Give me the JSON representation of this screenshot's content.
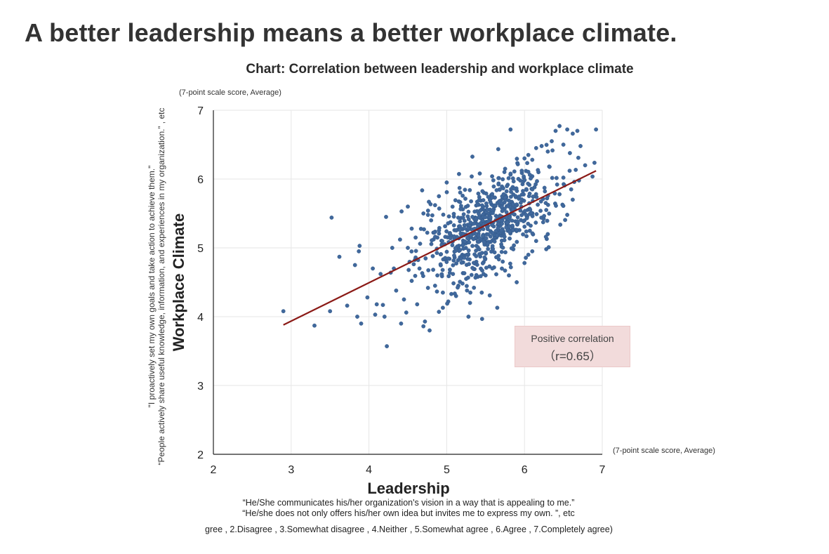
{
  "headline": "A better leadership means a better workplace climate.",
  "chart_data": {
    "type": "scatter",
    "title": "Chart: Correlation between leadership and workplace climate",
    "unit_note_y": "(7-point scale score, Average)",
    "unit_note_x": "(7-point scale score, Average)",
    "xlabel": "Leadership",
    "ylabel": "Workplace Climate",
    "xlim": [
      2,
      7
    ],
    "ylim": [
      2,
      7
    ],
    "xticks": [
      "2",
      "3",
      "4",
      "5",
      "6",
      "7"
    ],
    "yticks": [
      "2",
      "3",
      "4",
      "5",
      "6",
      "7"
    ],
    "grid": true,
    "x_items": [
      "“He/She communicates his/her organization's vision in a way that is appealing to me.”",
      "“He/she does not only offers his/her own idea but invites me to express my own. ”, etc"
    ],
    "y_items": [
      "\"I proactively set my own goals and take action to achieve them.\"",
      "“People actively share useful knowledge, information, and experiences in my organization.” , etc"
    ],
    "scale_note": "gree , 2.Disagree , 3.Somewhat disagree , 4.Neither , 5.Somewhat agree , 6.Agree , 7.Completely agree)",
    "annotation": {
      "line1": "Positive correlation",
      "line2": "（r=0.65）"
    },
    "trendline": {
      "x": [
        2.9,
        6.92
      ],
      "y": [
        3.88,
        6.12
      ]
    },
    "points": [
      [
        2.9,
        4.08
      ],
      [
        3.3,
        3.87
      ],
      [
        3.5,
        4.08
      ],
      [
        3.52,
        5.44
      ],
      [
        3.62,
        4.87
      ],
      [
        3.72,
        4.16
      ],
      [
        3.82,
        4.75
      ],
      [
        3.85,
        4.0
      ],
      [
        3.87,
        4.95
      ],
      [
        3.88,
        5.03
      ],
      [
        3.98,
        4.28
      ],
      [
        4.05,
        4.7
      ],
      [
        4.08,
        4.03
      ],
      [
        4.1,
        4.18
      ],
      [
        4.15,
        4.62
      ],
      [
        4.18,
        4.17
      ],
      [
        4.2,
        4.0
      ],
      [
        4.22,
        5.45
      ],
      [
        4.23,
        3.57
      ],
      [
        4.28,
        4.64
      ],
      [
        4.3,
        5.0
      ],
      [
        4.35,
        4.38
      ],
      [
        4.42,
        5.53
      ],
      [
        4.45,
        4.25
      ],
      [
        4.48,
        4.06
      ],
      [
        4.55,
        4.52
      ],
      [
        4.62,
        4.18
      ],
      [
        4.7,
        3.86
      ],
      [
        4.72,
        3.93
      ],
      [
        4.78,
        3.8
      ],
      [
        4.82,
        4.88
      ],
      [
        4.85,
        4.45
      ],
      [
        4.88,
        4.6
      ],
      [
        4.9,
        4.07
      ],
      [
        4.95,
        4.13
      ],
      [
        5.02,
        4.22
      ],
      [
        5.06,
        4.33
      ],
      [
        5.08,
        4.62
      ],
      [
        5.12,
        4.3
      ],
      [
        5.2,
        4.9
      ],
      [
        5.25,
        4.55
      ],
      [
        5.28,
        4.0
      ],
      [
        5.35,
        4.42
      ],
      [
        5.4,
        4.58
      ],
      [
        5.5,
        4.6
      ],
      [
        5.55,
        4.73
      ],
      [
        5.65,
        4.13
      ],
      [
        5.72,
        4.8
      ],
      [
        5.75,
        4.67
      ],
      [
        5.8,
        4.6
      ],
      [
        5.82,
        6.72
      ],
      [
        5.9,
        4.5
      ],
      [
        6.0,
        6.3
      ],
      [
        6.05,
        6.35
      ],
      [
        6.1,
        6.28
      ],
      [
        6.15,
        6.45
      ],
      [
        6.22,
        6.48
      ],
      [
        6.3,
        6.4
      ],
      [
        6.35,
        6.55
      ],
      [
        6.4,
        6.7
      ],
      [
        6.45,
        6.77
      ],
      [
        6.5,
        6.5
      ],
      [
        6.55,
        6.72
      ],
      [
        6.62,
        6.66
      ],
      [
        6.68,
        6.7
      ],
      [
        6.72,
        6.48
      ],
      [
        6.78,
        6.2
      ],
      [
        6.92,
        6.72
      ],
      [
        6.62,
        5.7
      ],
      [
        6.55,
        5.48
      ],
      [
        6.45,
        5.78
      ],
      [
        6.6,
        5.85
      ],
      [
        6.7,
        5.98
      ],
      [
        6.5,
        6.02
      ],
      [
        6.58,
        6.12
      ],
      [
        6.42,
        5.92
      ],
      [
        6.28,
        5.55
      ],
      [
        6.15,
        5.1
      ],
      [
        6.05,
        4.9
      ],
      [
        6.3,
        5.2
      ],
      [
        6.18,
        6.1
      ],
      [
        6.1,
        6.04
      ],
      [
        4.5,
        5.0
      ],
      [
        4.6,
        4.86
      ],
      [
        4.65,
        4.7
      ],
      [
        4.55,
        5.28
      ],
      [
        4.4,
        5.12
      ],
      [
        4.32,
        4.7
      ],
      [
        4.5,
        5.6
      ],
      [
        4.7,
        5.5
      ],
      [
        4.8,
        5.4
      ],
      [
        4.9,
        5.75
      ],
      [
        5.0,
        5.95
      ],
      [
        4.85,
        5.62
      ],
      [
        4.75,
        5.22
      ],
      [
        4.6,
        5.15
      ],
      [
        4.95,
        4.35
      ],
      [
        5.15,
        4.45
      ],
      [
        5.3,
        4.2
      ],
      [
        5.45,
        4.35
      ],
      [
        6.0,
        4.78
      ],
      [
        6.1,
        4.95
      ]
    ],
    "scatter_cloud": {
      "count": 700,
      "x_mean": 5.55,
      "x_sd": 0.42,
      "y_sd": 0.33,
      "seed": 7
    }
  },
  "colors": {
    "point": "#40689c",
    "point_edge": "#2f5585",
    "trendline": "#8b1a16",
    "axis": "#222222",
    "grid": "#e6e6e6",
    "annotation_bg": "#f2dbdb"
  }
}
